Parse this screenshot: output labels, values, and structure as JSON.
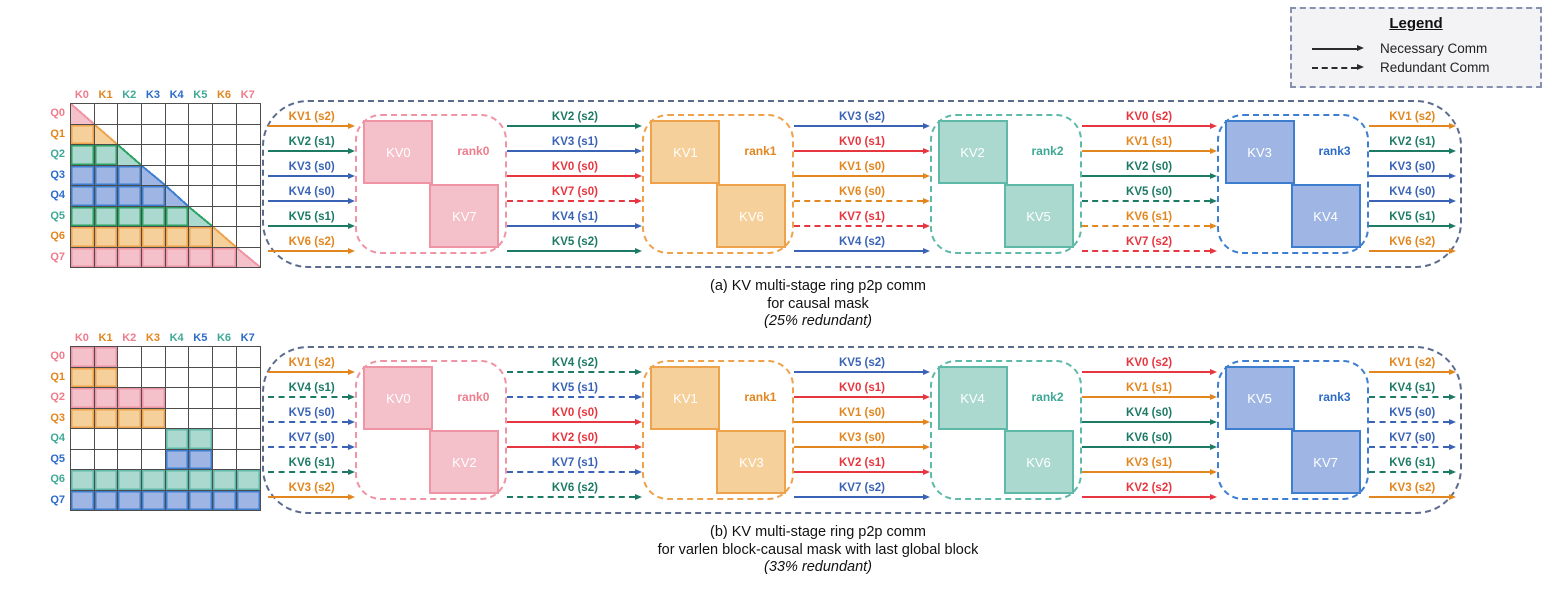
{
  "legend": {
    "title": "Legend",
    "items": [
      {
        "label": "Necessary Comm",
        "style": "solid"
      },
      {
        "label": "Redundant Comm",
        "style": "dashed"
      }
    ]
  },
  "palette": {
    "pink": {
      "fill": "#f4c0ca",
      "border": "#ee94a4",
      "label": "#ee7c8c"
    },
    "orange": {
      "fill": "#f6d09a",
      "border": "#eea24c",
      "label": "#e2861f"
    },
    "teal": {
      "fill": "#abd9cf",
      "border": "#5fb9a8",
      "label": "#3fa896"
    },
    "tealGreen": {
      "fill": "#abd9cf",
      "border": "#2ba261",
      "label": "#3fa896"
    },
    "blue": {
      "fill": "#9fb6e4",
      "border": "#3e7ed1",
      "label": "#2c6bc8"
    },
    "red": {
      "fill": "#f4c0ca",
      "border": "#e6363f",
      "label": "#e6363f"
    }
  },
  "arrow_colors": {
    "orange": "#e2861f",
    "teal": "#1d7a64",
    "blue": "#3a63b6",
    "red": "#e6363f"
  },
  "container_color": "#5a6b8e",
  "gridline_color": "#4d4d4d",
  "panels": [
    {
      "id": "a",
      "caption": [
        "(a) KV multi-stage ring p2p comm",
        "for causal mask",
        "(25% redundant)"
      ],
      "grid": {
        "col_labels": [
          "K0",
          "K1",
          "K2",
          "K3",
          "K4",
          "K5",
          "K6",
          "K7"
        ],
        "row_labels": [
          "Q0",
          "Q1",
          "Q2",
          "Q3",
          "Q4",
          "Q5",
          "Q6",
          "Q7"
        ],
        "label_colors": [
          "pink",
          "orange",
          "teal",
          "blue",
          "blue",
          "teal",
          "orange",
          "pink"
        ],
        "rows": [
          {
            "color": "pink",
            "start": 0,
            "end": 0,
            "triangle": true
          },
          {
            "color": "orange",
            "start": 0,
            "end": 1,
            "triangle": true
          },
          {
            "color": "tealGreen",
            "start": 0,
            "end": 2,
            "triangle": true
          },
          {
            "color": "blue",
            "start": 0,
            "end": 3,
            "triangle": true
          },
          {
            "color": "blue",
            "start": 0,
            "end": 4,
            "triangle": true
          },
          {
            "color": "tealGreen",
            "start": 0,
            "end": 5,
            "triangle": true
          },
          {
            "color": "orange",
            "start": 0,
            "end": 6,
            "triangle": true
          },
          {
            "color": "pink",
            "start": 0,
            "end": 7,
            "triangle": true
          }
        ]
      },
      "ranks": [
        {
          "name": "rank0",
          "color": "pink",
          "top": "KV0",
          "bottom": "KV7"
        },
        {
          "name": "rank1",
          "color": "orange",
          "top": "KV1",
          "bottom": "KV6"
        },
        {
          "name": "rank2",
          "color": "teal",
          "top": "KV2",
          "bottom": "KV5"
        },
        {
          "name": "rank3",
          "color": "blue",
          "top": "KV3",
          "bottom": "KV4"
        }
      ],
      "arrow_groups": [
        [
          {
            "label": "KV1 (s2)",
            "color": "orange",
            "dashed": false
          },
          {
            "label": "KV2 (s1)",
            "color": "teal",
            "dashed": false
          },
          {
            "label": "KV3 (s0)",
            "color": "blue",
            "dashed": false
          },
          {
            "label": "KV4 (s0)",
            "color": "blue",
            "dashed": false
          },
          {
            "label": "KV5 (s1)",
            "color": "teal",
            "dashed": false
          },
          {
            "label": "KV6 (s2)",
            "color": "orange",
            "dashed": false
          }
        ],
        [
          {
            "label": "KV2 (s2)",
            "color": "teal",
            "dashed": false
          },
          {
            "label": "KV3 (s1)",
            "color": "blue",
            "dashed": false
          },
          {
            "label": "KV0 (s0)",
            "color": "red",
            "dashed": false
          },
          {
            "label": "KV7 (s0)",
            "color": "red",
            "dashed": true
          },
          {
            "label": "KV4 (s1)",
            "color": "blue",
            "dashed": false
          },
          {
            "label": "KV5 (s2)",
            "color": "teal",
            "dashed": false
          }
        ],
        [
          {
            "label": "KV3 (s2)",
            "color": "blue",
            "dashed": false
          },
          {
            "label": "KV0 (s1)",
            "color": "red",
            "dashed": false
          },
          {
            "label": "KV1 (s0)",
            "color": "orange",
            "dashed": false
          },
          {
            "label": "KV6 (s0)",
            "color": "orange",
            "dashed": true
          },
          {
            "label": "KV7 (s1)",
            "color": "red",
            "dashed": true
          },
          {
            "label": "KV4 (s2)",
            "color": "blue",
            "dashed": false
          }
        ],
        [
          {
            "label": "KV0 (s2)",
            "color": "red",
            "dashed": false
          },
          {
            "label": "KV1 (s1)",
            "color": "orange",
            "dashed": false
          },
          {
            "label": "KV2 (s0)",
            "color": "teal",
            "dashed": false
          },
          {
            "label": "KV5 (s0)",
            "color": "teal",
            "dashed": true
          },
          {
            "label": "KV6 (s1)",
            "color": "orange",
            "dashed": true
          },
          {
            "label": "KV7 (s2)",
            "color": "red",
            "dashed": true
          }
        ],
        [
          {
            "label": "KV1 (s2)",
            "color": "orange",
            "dashed": false
          },
          {
            "label": "KV2 (s1)",
            "color": "teal",
            "dashed": false
          },
          {
            "label": "KV3 (s0)",
            "color": "blue",
            "dashed": false
          },
          {
            "label": "KV4 (s0)",
            "color": "blue",
            "dashed": false
          },
          {
            "label": "KV5 (s1)",
            "color": "teal",
            "dashed": false
          },
          {
            "label": "KV6 (s2)",
            "color": "orange",
            "dashed": false
          }
        ]
      ]
    },
    {
      "id": "b",
      "caption": [
        "(b) KV multi-stage ring p2p comm",
        "for varlen block-causal mask with last global block",
        "(33% redundant)"
      ],
      "grid": {
        "col_labels": [
          "K0",
          "K1",
          "K2",
          "K3",
          "K4",
          "K5",
          "K6",
          "K7"
        ],
        "row_labels": [
          "Q0",
          "Q1",
          "Q2",
          "Q3",
          "Q4",
          "Q5",
          "Q6",
          "Q7"
        ],
        "label_colors": [
          "pink",
          "orange",
          "pink",
          "orange",
          "teal",
          "blue",
          "teal",
          "blue"
        ],
        "rows": [
          {
            "color": "pink",
            "start": 0,
            "end": 1,
            "triangle": false
          },
          {
            "color": "orange",
            "start": 0,
            "end": 1,
            "triangle": false
          },
          {
            "color": "pink",
            "start": 0,
            "end": 3,
            "triangle": false
          },
          {
            "color": "orange",
            "start": 0,
            "end": 3,
            "triangle": false
          },
          {
            "color": "teal",
            "start": 4,
            "end": 5,
            "triangle": false
          },
          {
            "color": "blue",
            "start": 4,
            "end": 5,
            "triangle": false
          },
          {
            "color": "teal",
            "start": 0,
            "end": 7,
            "triangle": false
          },
          {
            "color": "blue",
            "start": 0,
            "end": 7,
            "triangle": false
          }
        ]
      },
      "ranks": [
        {
          "name": "rank0",
          "color": "pink",
          "top": "KV0",
          "bottom": "KV2"
        },
        {
          "name": "rank1",
          "color": "orange",
          "top": "KV1",
          "bottom": "KV3"
        },
        {
          "name": "rank2",
          "color": "teal",
          "top": "KV4",
          "bottom": "KV6"
        },
        {
          "name": "rank3",
          "color": "blue",
          "top": "KV5",
          "bottom": "KV7"
        }
      ],
      "arrow_groups": [
        [
          {
            "label": "KV1 (s2)",
            "color": "orange",
            "dashed": false
          },
          {
            "label": "KV4 (s1)",
            "color": "teal",
            "dashed": true
          },
          {
            "label": "KV5 (s0)",
            "color": "blue",
            "dashed": true
          },
          {
            "label": "KV7 (s0)",
            "color": "blue",
            "dashed": true
          },
          {
            "label": "KV6 (s1)",
            "color": "teal",
            "dashed": true
          },
          {
            "label": "KV3 (s2)",
            "color": "orange",
            "dashed": false
          }
        ],
        [
          {
            "label": "KV4 (s2)",
            "color": "teal",
            "dashed": true
          },
          {
            "label": "KV5 (s1)",
            "color": "blue",
            "dashed": true
          },
          {
            "label": "KV0 (s0)",
            "color": "red",
            "dashed": false
          },
          {
            "label": "KV2 (s0)",
            "color": "red",
            "dashed": false
          },
          {
            "label": "KV7 (s1)",
            "color": "blue",
            "dashed": true
          },
          {
            "label": "KV6 (s2)",
            "color": "teal",
            "dashed": true
          }
        ],
        [
          {
            "label": "KV5 (s2)",
            "color": "blue",
            "dashed": false
          },
          {
            "label": "KV0 (s1)",
            "color": "red",
            "dashed": false
          },
          {
            "label": "KV1 (s0)",
            "color": "orange",
            "dashed": false
          },
          {
            "label": "KV3 (s0)",
            "color": "orange",
            "dashed": false
          },
          {
            "label": "KV2 (s1)",
            "color": "red",
            "dashed": false
          },
          {
            "label": "KV7 (s2)",
            "color": "blue",
            "dashed": false
          }
        ],
        [
          {
            "label": "KV0 (s2)",
            "color": "red",
            "dashed": false
          },
          {
            "label": "KV1 (s1)",
            "color": "orange",
            "dashed": false
          },
          {
            "label": "KV4 (s0)",
            "color": "teal",
            "dashed": false
          },
          {
            "label": "KV6 (s0)",
            "color": "teal",
            "dashed": false
          },
          {
            "label": "KV3 (s1)",
            "color": "orange",
            "dashed": false
          },
          {
            "label": "KV2 (s2)",
            "color": "red",
            "dashed": false
          }
        ],
        [
          {
            "label": "KV1 (s2)",
            "color": "orange",
            "dashed": false
          },
          {
            "label": "KV4 (s1)",
            "color": "teal",
            "dashed": true
          },
          {
            "label": "KV5 (s0)",
            "color": "blue",
            "dashed": true
          },
          {
            "label": "KV7 (s0)",
            "color": "blue",
            "dashed": true
          },
          {
            "label": "KV6 (s1)",
            "color": "teal",
            "dashed": true
          },
          {
            "label": "KV3 (s2)",
            "color": "orange",
            "dashed": false
          }
        ]
      ]
    }
  ]
}
